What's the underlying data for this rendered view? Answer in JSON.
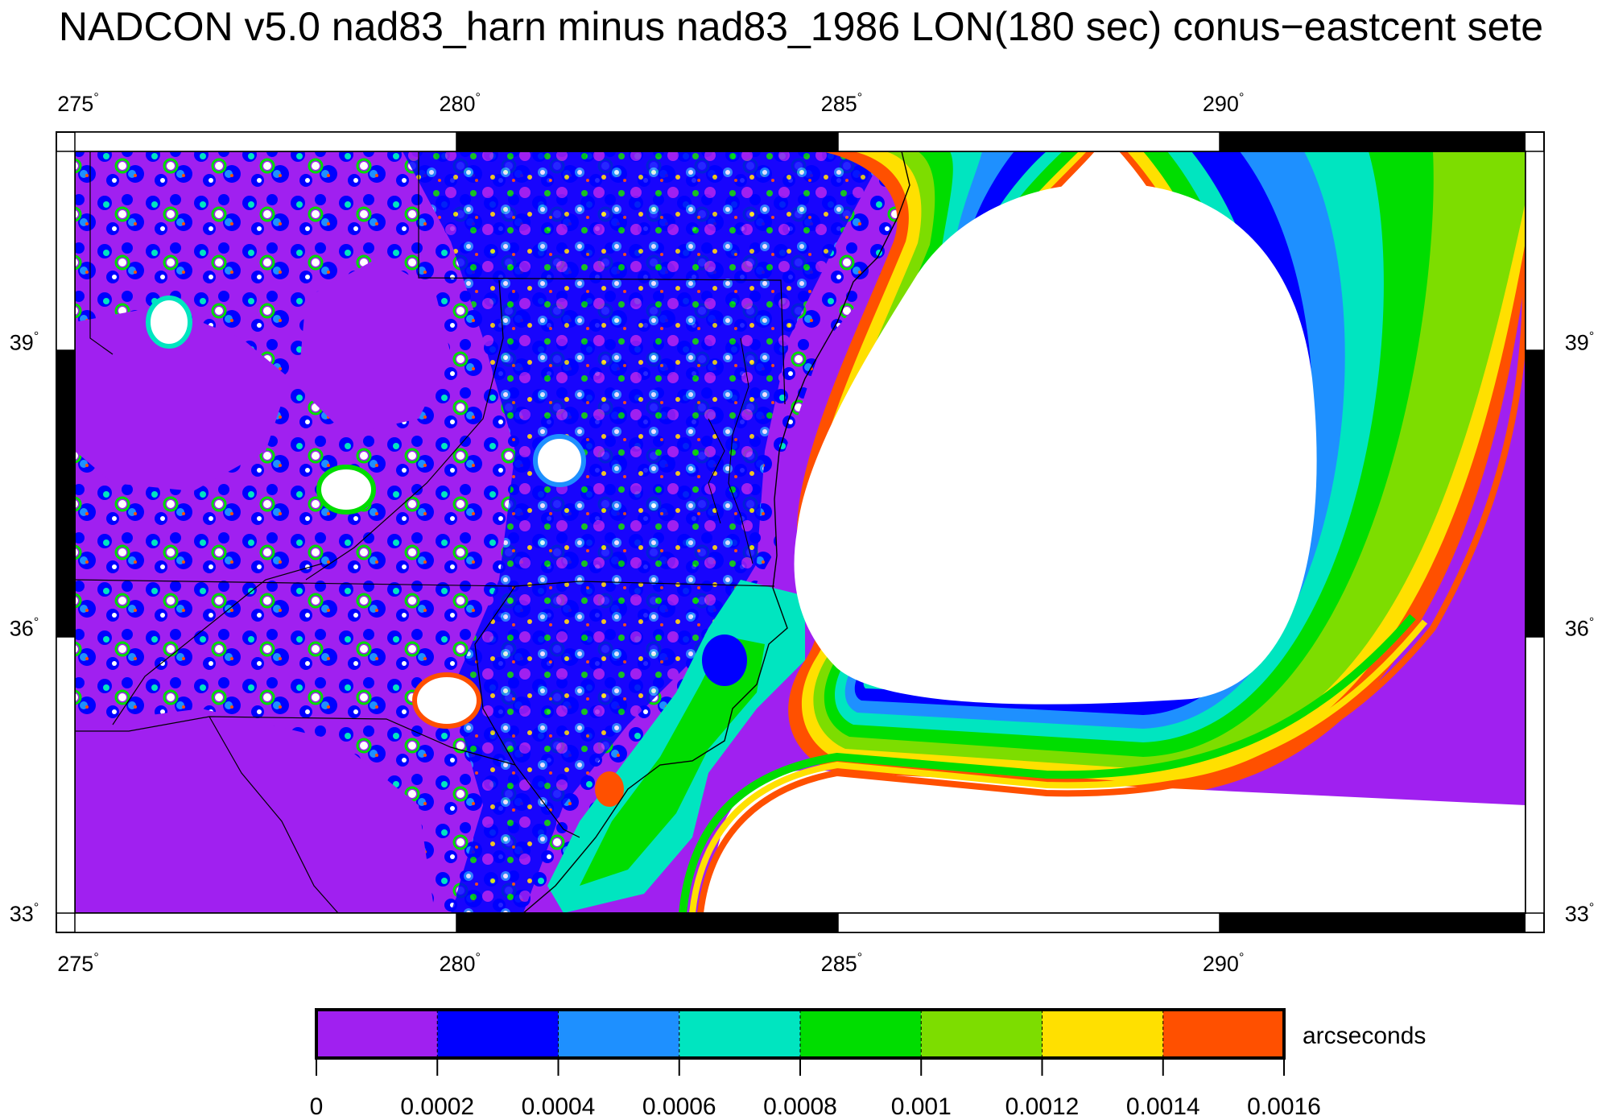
{
  "title": "NADCON v5.0 nad83_harn minus nad83_1986 LON(180 sec) conus−eastcent sete",
  "map": {
    "lon_ticks": [
      {
        "value": 275,
        "label": "275"
      },
      {
        "value": 280,
        "label": "280"
      },
      {
        "value": 285,
        "label": "285"
      },
      {
        "value": 290,
        "label": "290"
      }
    ],
    "lat_ticks": [
      {
        "value": 33,
        "label": "33"
      },
      {
        "value": 36,
        "label": "36"
      },
      {
        "value": 39,
        "label": "39"
      }
    ],
    "degree_symbol": "°",
    "lon_range": [
      275,
      294
    ],
    "lat_range": [
      33,
      41
    ]
  },
  "colorbar": {
    "unit_label": "arcseconds",
    "tick_labels": [
      "0",
      "0.0002",
      "0.0004",
      "0.0006",
      "0.0008",
      "0.001",
      "0.0012",
      "0.0014",
      "0.0016"
    ],
    "colors": [
      "#a020f0",
      "#0000ff",
      "#1e90ff",
      "#00e5c0",
      "#00dd00",
      "#7ddd00",
      "#ffe000",
      "#ff5000"
    ]
  }
}
